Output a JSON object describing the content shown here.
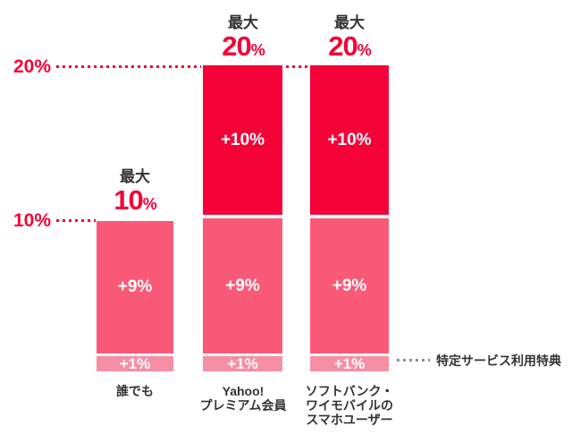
{
  "ui": {
    "y_axis": {
      "tick_top": "20%",
      "tick_mid": "10%"
    },
    "bars": [
      {
        "header_prefix": "最大",
        "header_number": "10",
        "header_percent": "%",
        "seg_mid_label": "+9%",
        "seg_bottom_label": "+1%",
        "label_lines": [
          "誰でも"
        ]
      },
      {
        "header_prefix": "最大",
        "header_number": "20",
        "header_percent": "%",
        "seg_top_label": "+10%",
        "seg_mid_label": "+9%",
        "seg_bottom_label": "+1%",
        "label_lines": [
          "Yahoo!",
          "プレミアム会員"
        ]
      },
      {
        "header_prefix": "最大",
        "header_number": "20",
        "header_percent": "%",
        "seg_top_label": "+10%",
        "seg_mid_label": "+9%",
        "seg_bottom_label": "+1%",
        "label_lines": [
          "ソフトバンク・",
          "ワイモバイルの",
          "スマホユーザー"
        ]
      }
    ],
    "annotation": "特定サービス利用特典",
    "colors": {
      "accent_red": "#f40238",
      "pink": "#fa5a78",
      "light_pink": "#f78fa4",
      "text_dark": "#333333",
      "dot_gray": "#8f8f8f"
    }
  },
  "chart_data": {
    "type": "bar",
    "stacked": true,
    "title": "",
    "categories": [
      "誰でも",
      "Yahoo! プレミアム会員",
      "ソフトバンク・ワイモバイルのスマホユーザー"
    ],
    "series": [
      {
        "name": "+1%",
        "values": [
          1,
          1,
          1
        ],
        "color": "#f78fa4",
        "note": "特定サービス利用特典"
      },
      {
        "name": "+9%",
        "values": [
          9,
          9,
          9
        ],
        "color": "#fa5a78"
      },
      {
        "name": "+10%",
        "values": [
          0,
          10,
          10
        ],
        "color": "#f40238"
      }
    ],
    "totals": [
      10,
      20,
      20
    ],
    "total_labels": [
      "最大10%",
      "最大20%",
      "最大20%"
    ],
    "y_ticks": [
      "10%",
      "20%"
    ],
    "ylim": [
      0,
      20
    ],
    "grid": "dotted horizontal guides at 10% and 20%",
    "legend_position": "none",
    "annotation": "特定サービス利用特典 (points to +1% segment)"
  }
}
